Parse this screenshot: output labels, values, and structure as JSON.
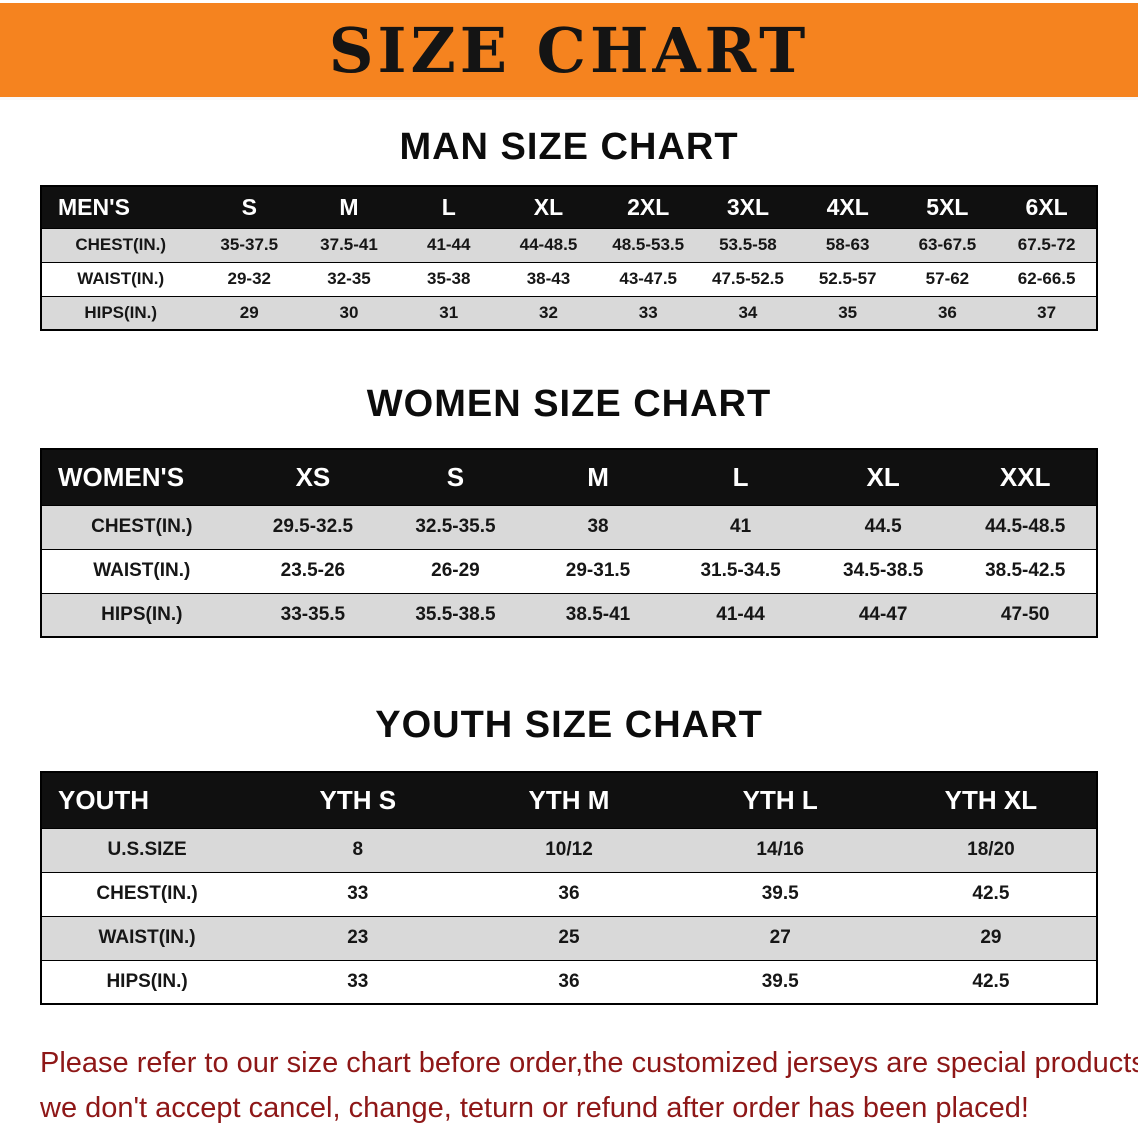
{
  "banner": {
    "title": "SIZE CHART",
    "bg_color": "#f5831f",
    "text_color": "#141414"
  },
  "sections": [
    {
      "title": "MAN SIZE CHART",
      "table": {
        "label_header": "MEN'S",
        "columns": [
          "S",
          "M",
          "L",
          "XL",
          "2XL",
          "3XL",
          "4XL",
          "5XL",
          "6XL"
        ],
        "rows": [
          {
            "label": "CHEST(IN.)",
            "values": [
              "35-37.5",
              "37.5-41",
              "41-44",
              "44-48.5",
              "48.5-53.5",
              "53.5-58",
              "58-63",
              "63-67.5",
              "67.5-72"
            ]
          },
          {
            "label": "WAIST(IN.)",
            "values": [
              "29-32",
              "32-35",
              "35-38",
              "38-43",
              "43-47.5",
              "47.5-52.5",
              "52.5-57",
              "57-62",
              "62-66.5"
            ]
          },
          {
            "label": "HIPS(IN.)",
            "values": [
              "29",
              "30",
              "31",
              "32",
              "33",
              "34",
              "35",
              "36",
              "37"
            ]
          }
        ]
      }
    },
    {
      "title": "WOMEN SIZE CHART",
      "table": {
        "label_header": "WOMEN'S",
        "columns": [
          "XS",
          "S",
          "M",
          "L",
          "XL",
          "XXL"
        ],
        "rows": [
          {
            "label": "CHEST(IN.)",
            "values": [
              "29.5-32.5",
              "32.5-35.5",
              "38",
              "41",
              "44.5",
              "44.5-48.5"
            ]
          },
          {
            "label": "WAIST(IN.)",
            "values": [
              "23.5-26",
              "26-29",
              "29-31.5",
              "31.5-34.5",
              "34.5-38.5",
              "38.5-42.5"
            ]
          },
          {
            "label": "HIPS(IN.)",
            "values": [
              "33-35.5",
              "35.5-38.5",
              "38.5-41",
              "41-44",
              "44-47",
              "47-50"
            ]
          }
        ]
      }
    },
    {
      "title": "YOUTH SIZE CHART",
      "table": {
        "label_header": "YOUTH",
        "columns": [
          "YTH S",
          "YTH M",
          "YTH L",
          "YTH XL"
        ],
        "rows": [
          {
            "label": "U.S.SIZE",
            "values": [
              "8",
              "10/12",
              "14/16",
              "18/20"
            ]
          },
          {
            "label": "CHEST(IN.)",
            "values": [
              "33",
              "36",
              "39.5",
              "42.5"
            ]
          },
          {
            "label": "WAIST(IN.)",
            "values": [
              "23",
              "25",
              "27",
              "29"
            ]
          },
          {
            "label": "HIPS(IN.)",
            "values": [
              "33",
              "36",
              "39.5",
              "42.5"
            ]
          }
        ]
      }
    }
  ],
  "footer": {
    "line1": "Please refer to our size chart before order,the customized jerseys are special products,",
    "line2": "we don't accept cancel, change, teturn or refund after order has been placed!",
    "text_color": "#8e1717"
  }
}
